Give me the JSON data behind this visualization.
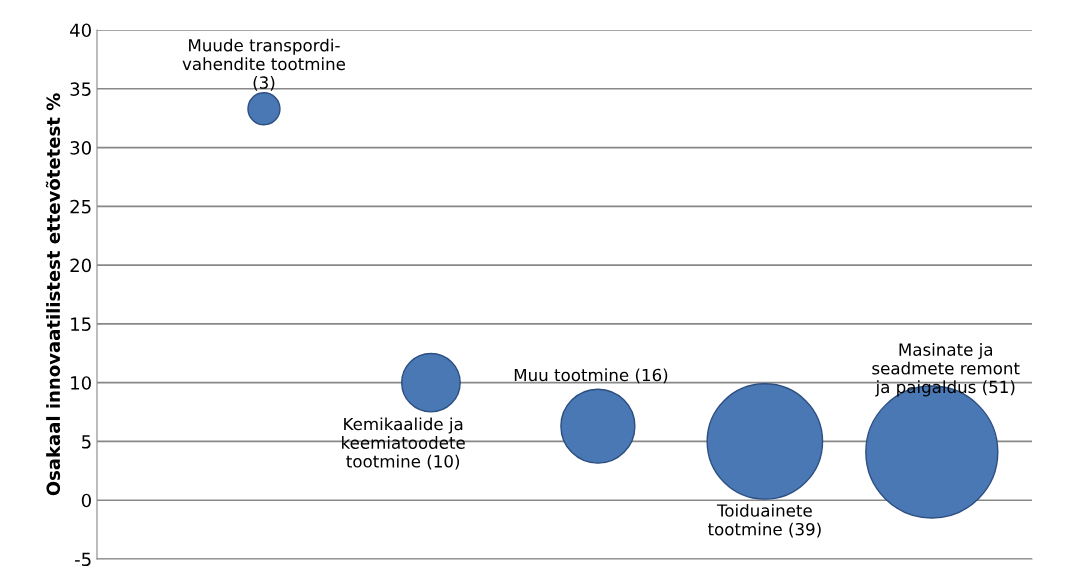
{
  "chart_data": {
    "type": "bubble",
    "ylabel": "Osakaal innovaatilistest ettevõtetest %",
    "categories": [
      null,
      null,
      null,
      null,
      null
    ],
    "series": [
      {
        "color": "#4a78b5",
        "values": [
          33.3,
          10,
          6.3,
          5.0,
          4.1
        ],
        "sizes": [
          0.059,
          0.196,
          0.314,
          0.765,
          1
        ]
      }
    ],
    "annotations": [
      "Muude transpordi-\nvahendite tootmine\n(3)",
      "Kemikaalide ja\nkeemiatoodete\ntootmine (10)",
      "Muu tootmine (16)",
      "Toiduainete\ntootmine (39)",
      "Masinate ja\nseadmete remont\nja paigaldus (51)"
    ],
    "ylim": [
      -5,
      40
    ],
    "yticks": [
      -5,
      0,
      5,
      10,
      15,
      20,
      25,
      30,
      35,
      40
    ],
    "grid": "y",
    "tick_labels": "y"
  }
}
